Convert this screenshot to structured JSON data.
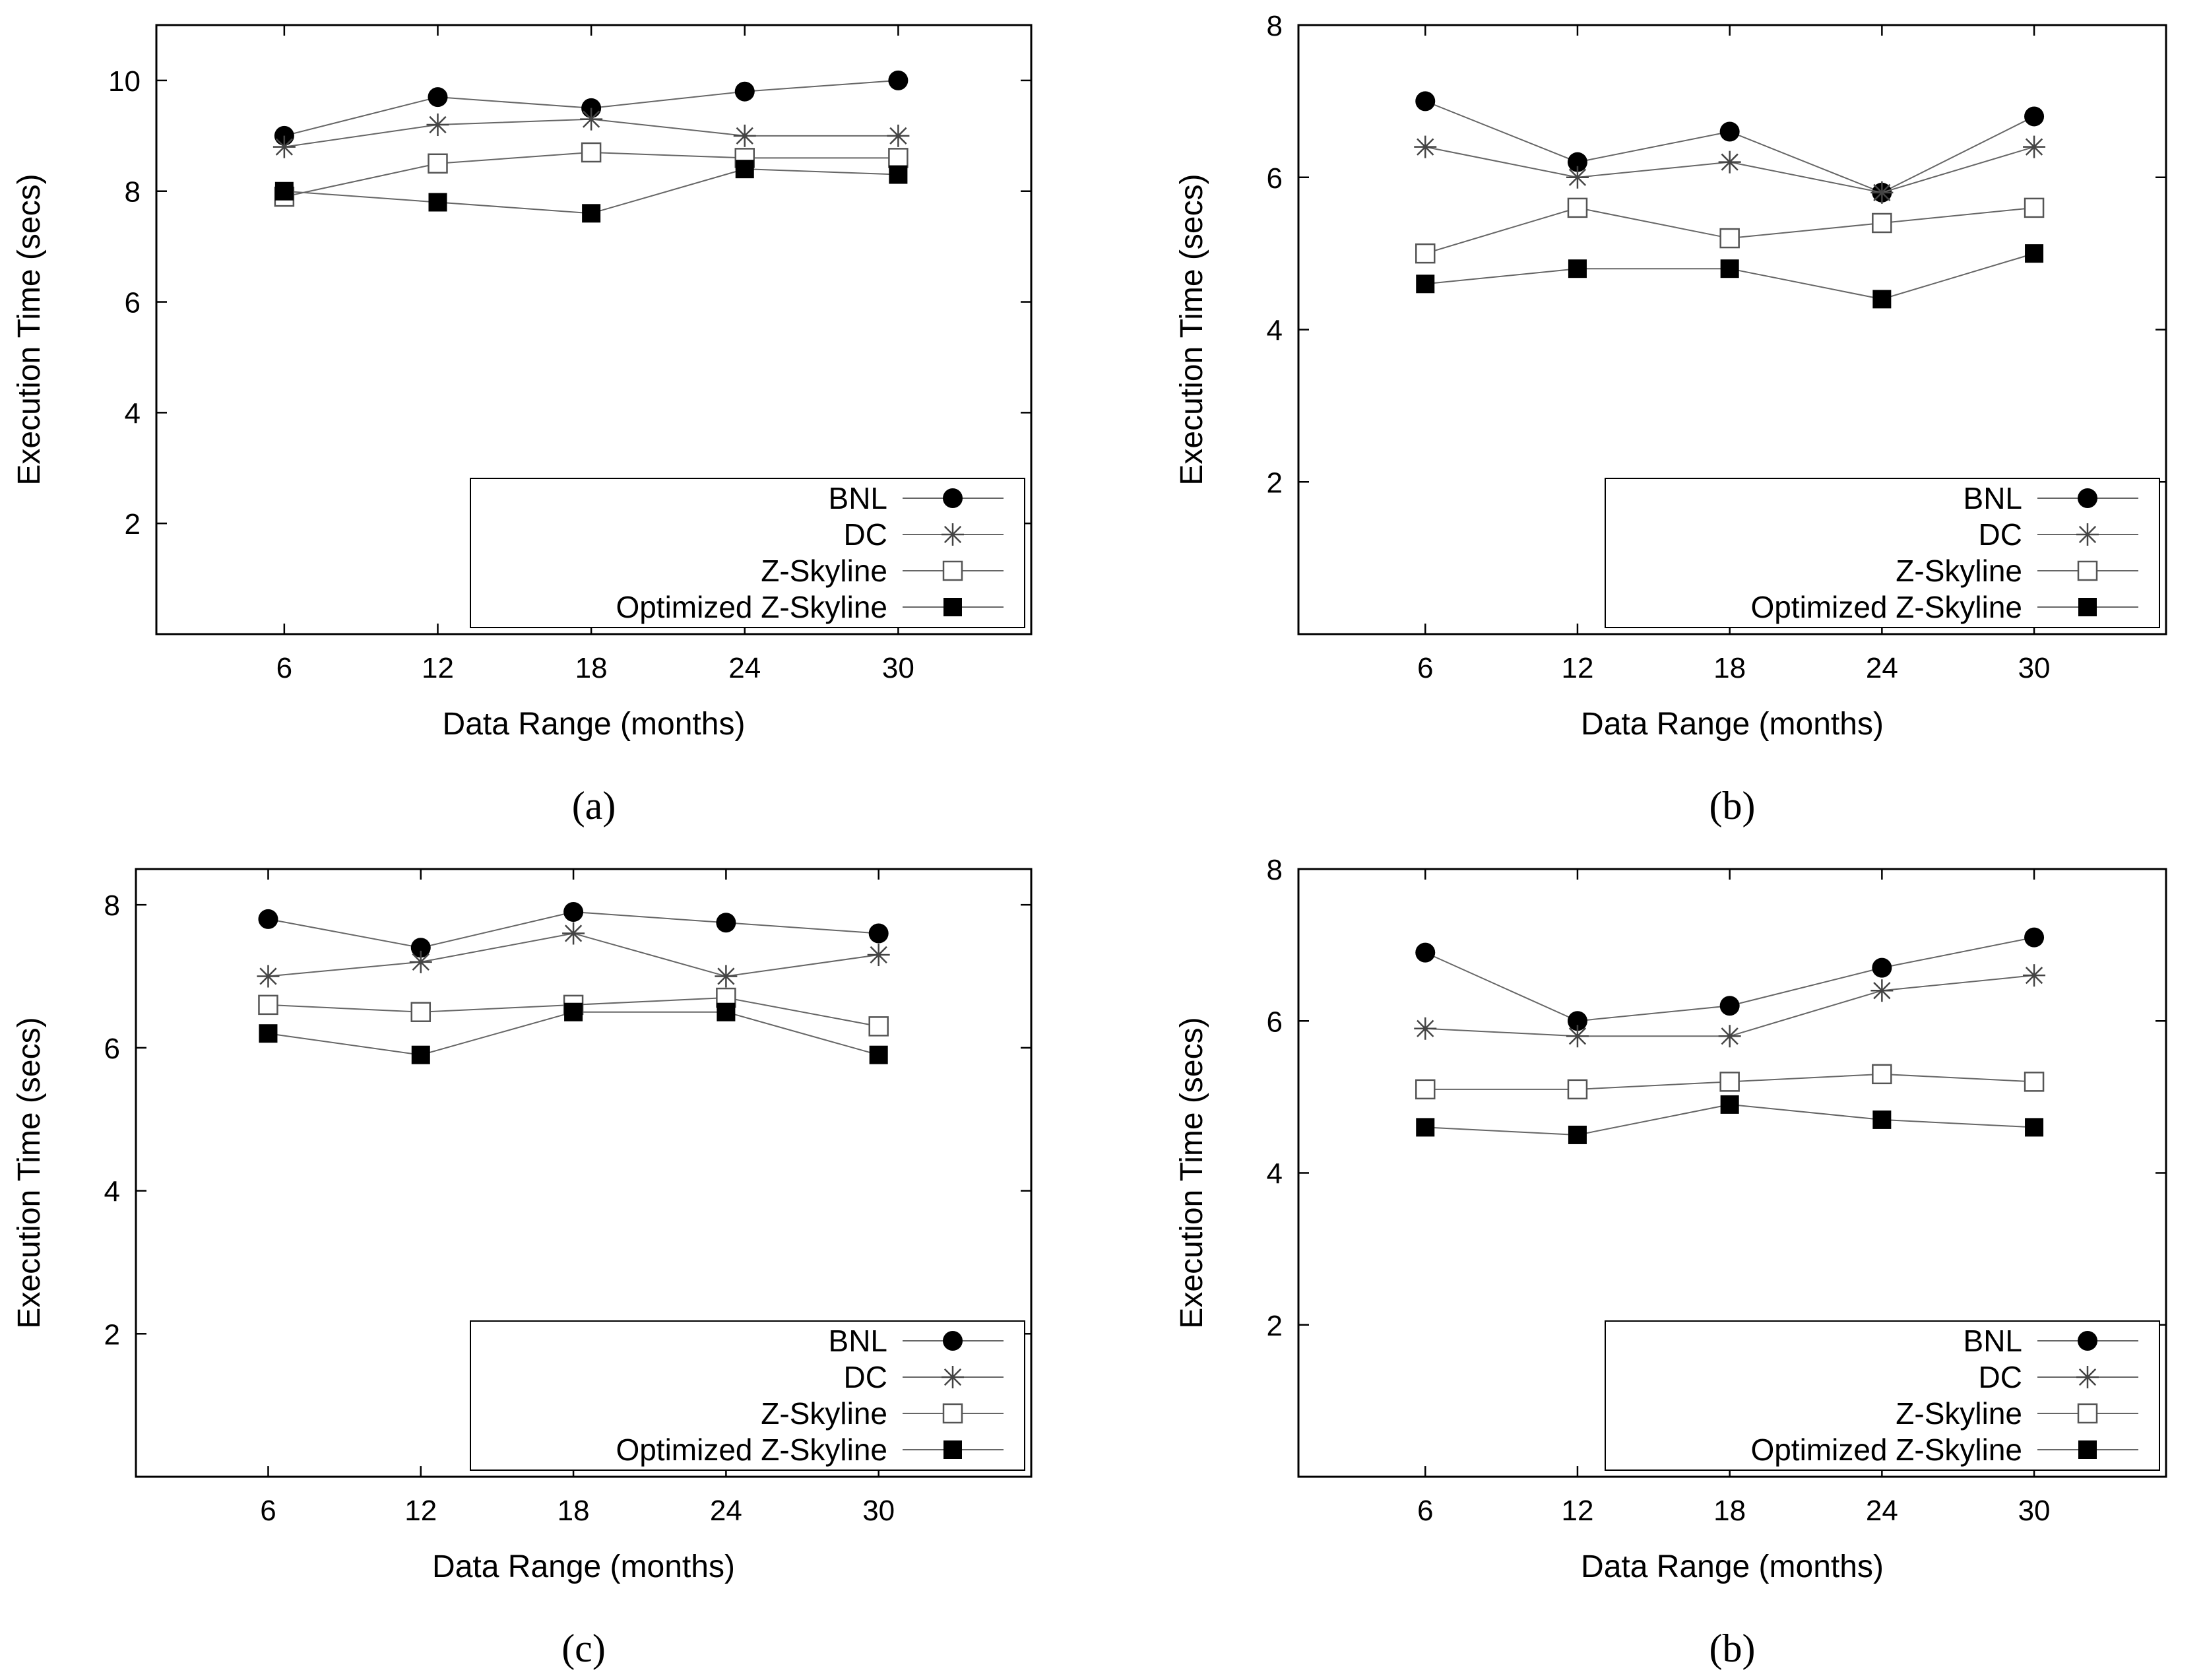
{
  "chart_data": [
    {
      "type": "line",
      "caption": "(a)",
      "xlabel": "Data Range (months)",
      "ylabel": "Execution Time (secs)",
      "x": [
        6,
        12,
        18,
        24,
        30
      ],
      "xticks": [
        "6",
        "12",
        "18",
        "24",
        "30"
      ],
      "yticks": [
        "2",
        "4",
        "6",
        "8",
        "10"
      ],
      "ylim": [
        0,
        11
      ],
      "legend_position": "bottom-right",
      "series": [
        {
          "name": "BNL",
          "marker": "filled-circle",
          "values": [
            9.0,
            9.7,
            9.5,
            9.8,
            10.0
          ]
        },
        {
          "name": "DC",
          "marker": "asterisk",
          "values": [
            8.8,
            9.2,
            9.3,
            9.0,
            9.0
          ]
        },
        {
          "name": "Z-Skyline",
          "marker": "open-square",
          "values": [
            7.9,
            8.5,
            8.7,
            8.6,
            8.6
          ]
        },
        {
          "name": "Optimized Z-Skyline",
          "marker": "filled-square",
          "values": [
            8.0,
            7.8,
            7.6,
            8.4,
            8.3
          ]
        }
      ]
    },
    {
      "type": "line",
      "caption": "(b)",
      "xlabel": "Data Range (months)",
      "ylabel": "Execution Time (secs)",
      "x": [
        6,
        12,
        18,
        24,
        30
      ],
      "xticks": [
        "6",
        "12",
        "18",
        "24",
        "30"
      ],
      "yticks": [
        "2",
        "4",
        "6",
        "8"
      ],
      "ylim": [
        0,
        8
      ],
      "legend_position": "bottom-right",
      "series": [
        {
          "name": "BNL",
          "marker": "filled-circle",
          "values": [
            7.0,
            6.2,
            6.6,
            5.8,
            6.8
          ]
        },
        {
          "name": "DC",
          "marker": "asterisk",
          "values": [
            6.4,
            6.0,
            6.2,
            5.8,
            6.4
          ]
        },
        {
          "name": "Z-Skyline",
          "marker": "open-square",
          "values": [
            5.0,
            5.6,
            5.2,
            5.4,
            5.6
          ]
        },
        {
          "name": "Optimized Z-Skyline",
          "marker": "filled-square",
          "values": [
            4.6,
            4.8,
            4.8,
            4.4,
            5.0
          ]
        }
      ]
    },
    {
      "type": "line",
      "caption": "(c)",
      "xlabel": "Data Range (months)",
      "ylabel": "Execution Time (secs)",
      "x": [
        6,
        12,
        18,
        24,
        30
      ],
      "xticks": [
        "6",
        "12",
        "18",
        "24",
        "30"
      ],
      "yticks": [
        "2",
        "4",
        "6",
        "8"
      ],
      "ylim": [
        0,
        8.5
      ],
      "legend_position": "bottom-right",
      "series": [
        {
          "name": "BNL",
          "marker": "filled-circle",
          "values": [
            7.8,
            7.4,
            7.9,
            7.75,
            7.6
          ]
        },
        {
          "name": "DC",
          "marker": "asterisk",
          "values": [
            7.0,
            7.2,
            7.6,
            7.0,
            7.3
          ]
        },
        {
          "name": "Z-Skyline",
          "marker": "open-square",
          "values": [
            6.6,
            6.5,
            6.6,
            6.7,
            6.3
          ]
        },
        {
          "name": "Optimized Z-Skyline",
          "marker": "filled-square",
          "values": [
            6.2,
            5.9,
            6.5,
            6.5,
            5.9
          ]
        }
      ]
    },
    {
      "type": "line",
      "caption": "(b)",
      "xlabel": "Data Range (months)",
      "ylabel": "Execution Time (secs)",
      "x": [
        6,
        12,
        18,
        24,
        30
      ],
      "xticks": [
        "6",
        "12",
        "18",
        "24",
        "30"
      ],
      "yticks": [
        "2",
        "4",
        "6",
        "8"
      ],
      "ylim": [
        0,
        8
      ],
      "legend_position": "bottom-right",
      "series": [
        {
          "name": "BNL",
          "marker": "filled-circle",
          "values": [
            6.9,
            6.0,
            6.2,
            6.7,
            7.1
          ]
        },
        {
          "name": "DC",
          "marker": "asterisk",
          "values": [
            5.9,
            5.8,
            5.8,
            6.4,
            6.6
          ]
        },
        {
          "name": "Z-Skyline",
          "marker": "open-square",
          "values": [
            5.1,
            5.1,
            5.2,
            5.3,
            5.2
          ]
        },
        {
          "name": "Optimized Z-Skyline",
          "marker": "filled-square",
          "values": [
            4.6,
            4.5,
            4.9,
            4.7,
            4.6
          ]
        }
      ]
    }
  ]
}
